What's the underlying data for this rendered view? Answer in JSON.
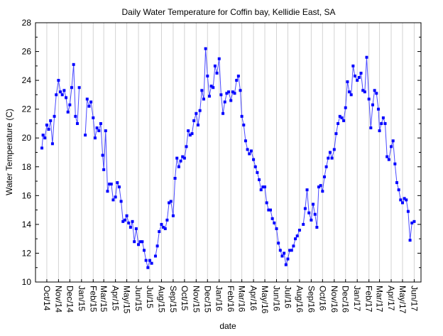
{
  "chart_data": {
    "type": "line",
    "title": "Daily Water Temperature for Coffin bay, Kellidie East, SA",
    "xlabel": "date",
    "ylabel": "Water Temperature (C)",
    "ylim": [
      10,
      28
    ],
    "yticks": [
      10,
      12,
      14,
      16,
      18,
      20,
      22,
      24,
      26,
      28
    ],
    "xlim": [
      "2014-09-01",
      "2017-06-19"
    ],
    "grid": "vertical lines at month ticks",
    "legend": "none",
    "series_color": "#0000ff",
    "marker": "square",
    "xticks": [
      {
        "date": "2014-10-01",
        "label": "Oct/14"
      },
      {
        "date": "2014-11-01",
        "label": "Nov/14"
      },
      {
        "date": "2014-12-01",
        "label": "Dec/14"
      },
      {
        "date": "2015-01-01",
        "label": "Jan/15"
      },
      {
        "date": "2015-02-01",
        "label": "Feb/15"
      },
      {
        "date": "2015-03-01",
        "label": "Mar/15"
      },
      {
        "date": "2015-04-01",
        "label": "Apr/15"
      },
      {
        "date": "2015-05-01",
        "label": "May/15"
      },
      {
        "date": "2015-06-01",
        "label": "Jun/15"
      },
      {
        "date": "2015-07-01",
        "label": "Jul/15"
      },
      {
        "date": "2015-08-01",
        "label": "Aug/15"
      },
      {
        "date": "2015-09-01",
        "label": "Sep/15"
      },
      {
        "date": "2015-10-01",
        "label": "Oct/15"
      },
      {
        "date": "2015-11-01",
        "label": "Nov/15"
      },
      {
        "date": "2015-12-01",
        "label": "Dec/15"
      },
      {
        "date": "2016-01-01",
        "label": "Jan/16"
      },
      {
        "date": "2016-02-01",
        "label": "Feb/16"
      },
      {
        "date": "2016-03-01",
        "label": "Mar/16"
      },
      {
        "date": "2016-04-01",
        "label": "Apr/16"
      },
      {
        "date": "2016-05-01",
        "label": "May/16"
      },
      {
        "date": "2016-06-01",
        "label": "Jun/16"
      },
      {
        "date": "2016-07-01",
        "label": "Jul/16"
      },
      {
        "date": "2016-08-01",
        "label": "Aug/16"
      },
      {
        "date": "2016-09-01",
        "label": "Sep/16"
      },
      {
        "date": "2016-10-01",
        "label": "Oct/16"
      },
      {
        "date": "2016-11-01",
        "label": "Nov/16"
      },
      {
        "date": "2016-12-01",
        "label": "Dec/16"
      },
      {
        "date": "2017-01-01",
        "label": "Jan/17"
      },
      {
        "date": "2017-02-01",
        "label": "Feb/17"
      },
      {
        "date": "2017-03-01",
        "label": "Mar/17"
      },
      {
        "date": "2017-04-01",
        "label": "Apr/17"
      },
      {
        "date": "2017-05-01",
        "label": "May/17"
      },
      {
        "date": "2017-06-01",
        "label": "Jun/17"
      }
    ],
    "points": [
      [
        "2014-09-18",
        19.3
      ],
      [
        "2014-09-21",
        20.2
      ],
      [
        "2014-09-26",
        20.0
      ],
      [
        "2014-10-01",
        20.9
      ],
      [
        "2014-10-06",
        20.6
      ],
      [
        "2014-10-11",
        21.2
      ],
      [
        "2014-10-16",
        19.6
      ],
      [
        "2014-10-21",
        21.5
      ],
      [
        "2014-10-26",
        23.0
      ],
      [
        "2014-11-01",
        24.0
      ],
      [
        "2014-11-06",
        23.2
      ],
      [
        "2014-11-11",
        23.0
      ],
      [
        "2014-11-16",
        23.3
      ],
      [
        "2014-11-21",
        22.8
      ],
      [
        "2014-11-26",
        21.8
      ],
      [
        "2014-12-01",
        22.3
      ],
      [
        "2014-12-06",
        23.5
      ],
      [
        "2014-12-11",
        25.1
      ],
      [
        "2014-12-16",
        21.5
      ],
      [
        "2014-12-21",
        21.0
      ],
      [
        "2014-12-26",
        23.5
      ],
      [
        "2015-01-01",
        null
      ],
      [
        "2015-01-11",
        20.2
      ],
      [
        "2015-01-16",
        22.7
      ],
      [
        "2015-01-21",
        22.2
      ],
      [
        "2015-01-26",
        22.5
      ],
      [
        "2015-02-01",
        21.4
      ],
      [
        "2015-02-06",
        20.0
      ],
      [
        "2015-02-11",
        20.7
      ],
      [
        "2015-02-16",
        20.5
      ],
      [
        "2015-02-21",
        21.0
      ],
      [
        "2015-02-26",
        18.8
      ],
      [
        "2015-03-01",
        17.8
      ],
      [
        "2015-03-06",
        20.5
      ],
      [
        "2015-03-11",
        16.3
      ],
      [
        "2015-03-16",
        16.8
      ],
      [
        "2015-03-21",
        16.8
      ],
      [
        "2015-03-26",
        15.7
      ],
      [
        "2015-04-01",
        15.9
      ],
      [
        "2015-04-06",
        16.9
      ],
      [
        "2015-04-11",
        16.6
      ],
      [
        "2015-04-16",
        15.6
      ],
      [
        "2015-04-21",
        14.2
      ],
      [
        "2015-04-26",
        14.3
      ],
      [
        "2015-05-01",
        14.6
      ],
      [
        "2015-05-06",
        14.1
      ],
      [
        "2015-05-11",
        13.8
      ],
      [
        "2015-05-16",
        14.2
      ],
      [
        "2015-05-21",
        12.8
      ],
      [
        "2015-05-26",
        13.7
      ],
      [
        "2015-06-01",
        12.6
      ],
      [
        "2015-06-06",
        12.8
      ],
      [
        "2015-06-11",
        12.8
      ],
      [
        "2015-06-16",
        12.2
      ],
      [
        "2015-06-21",
        11.5
      ],
      [
        "2015-06-26",
        11.0
      ],
      [
        "2015-07-01",
        11.5
      ],
      [
        "2015-07-06",
        11.3
      ],
      [
        "2015-07-11",
        null
      ],
      [
        "2015-07-16",
        11.8
      ],
      [
        "2015-07-21",
        12.5
      ],
      [
        "2015-07-26",
        13.5
      ],
      [
        "2015-08-01",
        14.0
      ],
      [
        "2015-08-06",
        13.8
      ],
      [
        "2015-08-11",
        13.7
      ],
      [
        "2015-08-16",
        14.3
      ],
      [
        "2015-08-21",
        15.5
      ],
      [
        "2015-08-26",
        15.6
      ],
      [
        "2015-09-01",
        14.6
      ],
      [
        "2015-09-06",
        17.2
      ],
      [
        "2015-09-11",
        18.6
      ],
      [
        "2015-09-16",
        18.0
      ],
      [
        "2015-09-21",
        18.4
      ],
      [
        "2015-09-26",
        18.7
      ],
      [
        "2015-10-01",
        18.6
      ],
      [
        "2015-10-06",
        19.4
      ],
      [
        "2015-10-11",
        20.5
      ],
      [
        "2015-10-16",
        20.2
      ],
      [
        "2015-10-21",
        20.3
      ],
      [
        "2015-10-26",
        21.2
      ],
      [
        "2015-11-01",
        21.7
      ],
      [
        "2015-11-06",
        20.9
      ],
      [
        "2015-11-11",
        21.9
      ],
      [
        "2015-11-16",
        23.3
      ],
      [
        "2015-11-21",
        22.7
      ],
      [
        "2015-11-26",
        26.2
      ],
      [
        "2015-12-01",
        24.3
      ],
      [
        "2015-12-06",
        22.9
      ],
      [
        "2015-12-11",
        23.6
      ],
      [
        "2015-12-16",
        23.5
      ],
      [
        "2015-12-21",
        25.0
      ],
      [
        "2015-12-26",
        24.5
      ],
      [
        "2016-01-01",
        25.5
      ],
      [
        "2016-01-06",
        23.0
      ],
      [
        "2016-01-11",
        21.7
      ],
      [
        "2016-01-16",
        22.5
      ],
      [
        "2016-01-21",
        23.1
      ],
      [
        "2016-01-26",
        23.2
      ],
      [
        "2016-02-01",
        22.6
      ],
      [
        "2016-02-06",
        23.2
      ],
      [
        "2016-02-11",
        23.1
      ],
      [
        "2016-02-16",
        24.0
      ],
      [
        "2016-02-21",
        24.3
      ],
      [
        "2016-02-26",
        23.3
      ],
      [
        "2016-03-01",
        21.5
      ],
      [
        "2016-03-06",
        20.9
      ],
      [
        "2016-03-11",
        19.8
      ],
      [
        "2016-03-16",
        19.2
      ],
      [
        "2016-03-21",
        18.9
      ],
      [
        "2016-03-26",
        19.1
      ],
      [
        "2016-04-01",
        18.5
      ],
      [
        "2016-04-06",
        18.0
      ],
      [
        "2016-04-11",
        17.6
      ],
      [
        "2016-04-16",
        17.1
      ],
      [
        "2016-04-21",
        16.4
      ],
      [
        "2016-04-26",
        16.6
      ],
      [
        "2016-05-01",
        16.6
      ],
      [
        "2016-05-06",
        15.5
      ],
      [
        "2016-05-11",
        15.0
      ],
      [
        "2016-05-16",
        15.0
      ],
      [
        "2016-05-21",
        14.4
      ],
      [
        "2016-05-26",
        14.1
      ],
      [
        "2016-06-01",
        13.7
      ],
      [
        "2016-06-06",
        12.7
      ],
      [
        "2016-06-11",
        12.2
      ],
      [
        "2016-06-16",
        11.8
      ],
      [
        "2016-06-21",
        12.0
      ],
      [
        "2016-06-26",
        11.2
      ],
      [
        "2016-07-01",
        11.6
      ],
      [
        "2016-07-06",
        12.2
      ],
      [
        "2016-07-11",
        12.2
      ],
      [
        "2016-07-16",
        12.5
      ],
      [
        "2016-07-21",
        13.0
      ],
      [
        "2016-07-26",
        13.2
      ],
      [
        "2016-08-01",
        13.6
      ],
      [
        "2016-08-06",
        null
      ],
      [
        "2016-08-11",
        14.0
      ],
      [
        "2016-08-16",
        15.1
      ],
      [
        "2016-08-21",
        16.4
      ],
      [
        "2016-08-26",
        14.8
      ],
      [
        "2016-09-01",
        14.3
      ],
      [
        "2016-09-06",
        15.4
      ],
      [
        "2016-09-11",
        14.7
      ],
      [
        "2016-09-16",
        13.8
      ],
      [
        "2016-09-21",
        16.6
      ],
      [
        "2016-09-26",
        16.7
      ],
      [
        "2016-10-01",
        16.3
      ],
      [
        "2016-10-06",
        17.3
      ],
      [
        "2016-10-11",
        18.0
      ],
      [
        "2016-10-16",
        18.6
      ],
      [
        "2016-10-21",
        19.0
      ],
      [
        "2016-10-26",
        18.6
      ],
      [
        "2016-11-01",
        19.2
      ],
      [
        "2016-11-06",
        20.3
      ],
      [
        "2016-11-11",
        21.0
      ],
      [
        "2016-11-16",
        21.5
      ],
      [
        "2016-11-21",
        21.4
      ],
      [
        "2016-11-26",
        21.2
      ],
      [
        "2016-12-01",
        22.1
      ],
      [
        "2016-12-06",
        23.9
      ],
      [
        "2016-12-11",
        23.2
      ],
      [
        "2016-12-16",
        23.0
      ],
      [
        "2016-12-21",
        25.0
      ],
      [
        "2016-12-26",
        24.3
      ],
      [
        "2017-01-01",
        24.0
      ],
      [
        "2017-01-06",
        24.2
      ],
      [
        "2017-01-11",
        24.5
      ],
      [
        "2017-01-16",
        23.3
      ],
      [
        "2017-01-21",
        23.2
      ],
      [
        "2017-01-26",
        25.6
      ],
      [
        "2017-02-01",
        22.7
      ],
      [
        "2017-02-06",
        20.7
      ],
      [
        "2017-02-11",
        22.3
      ],
      [
        "2017-02-16",
        23.3
      ],
      [
        "2017-02-21",
        23.1
      ],
      [
        "2017-02-26",
        22.0
      ],
      [
        "2017-03-01",
        20.5
      ],
      [
        "2017-03-06",
        21.0
      ],
      [
        "2017-03-11",
        21.4
      ],
      [
        "2017-03-16",
        21.0
      ],
      [
        "2017-03-21",
        18.7
      ],
      [
        "2017-03-26",
        18.5
      ],
      [
        "2017-04-01",
        19.4
      ],
      [
        "2017-04-06",
        19.8
      ],
      [
        "2017-04-11",
        18.2
      ],
      [
        "2017-04-16",
        16.9
      ],
      [
        "2017-04-21",
        16.4
      ],
      [
        "2017-04-26",
        15.7
      ],
      [
        "2017-05-01",
        15.5
      ],
      [
        "2017-05-06",
        15.8
      ],
      [
        "2017-05-11",
        15.7
      ],
      [
        "2017-05-16",
        14.9
      ],
      [
        "2017-05-21",
        12.9
      ],
      [
        "2017-05-26",
        14.1
      ],
      [
        "2017-06-01",
        14.2
      ]
    ]
  }
}
